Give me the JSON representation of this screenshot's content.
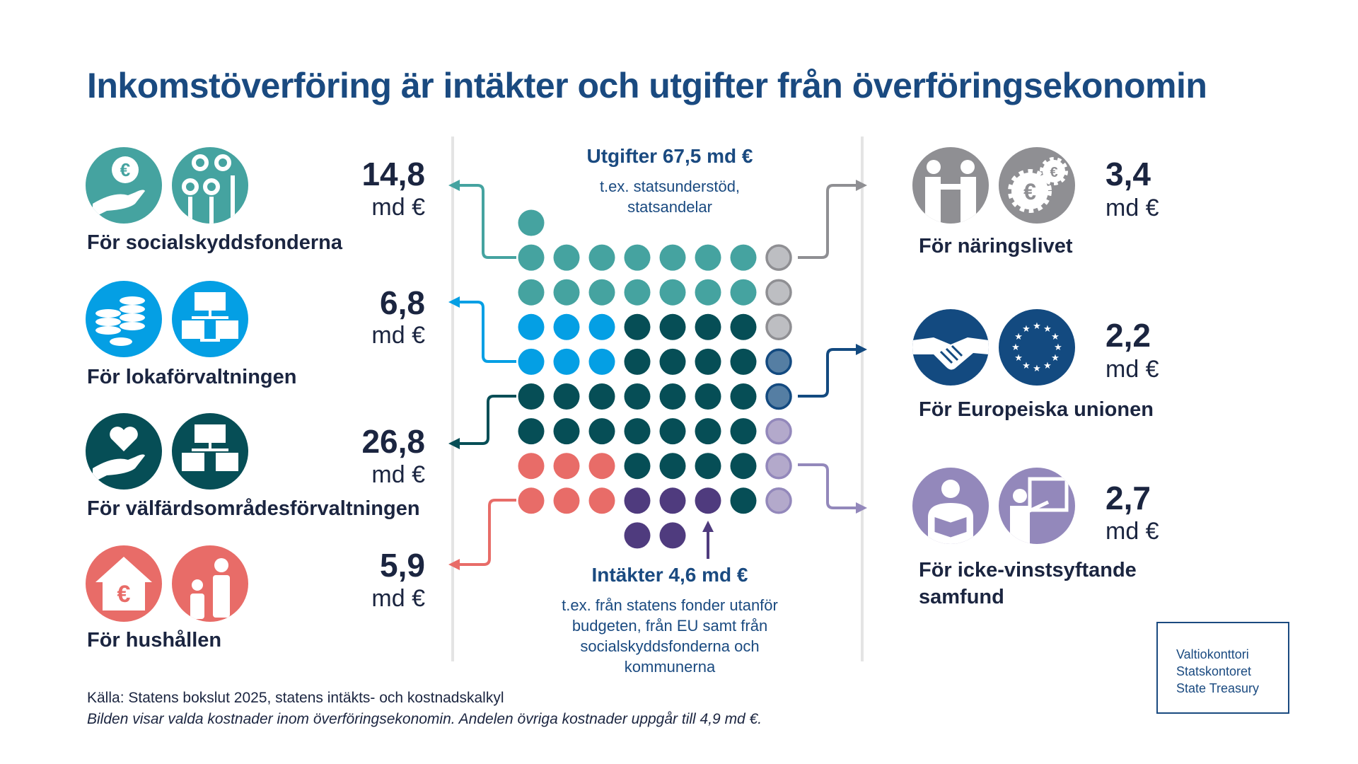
{
  "title": "Inkomstöverföring är intäkter och utgifter från överföringsekonomin",
  "colors": {
    "title": "#1a4a80",
    "social": "#45a3a0",
    "local": "#049fe4",
    "welfare": "#064e56",
    "households": "#e86c68",
    "eu": "#134a80",
    "business": "#8f8f93",
    "nonprofit": "#9388bb",
    "income": "#4f3b7e"
  },
  "left": [
    {
      "label": "För socialskyddsfonderna",
      "value": "14,8",
      "unit": "md €",
      "icons": [
        "euro-coin-hand-icon",
        "family-icon"
      ]
    },
    {
      "label": "För lokaförvaltningen",
      "value": "6,8",
      "unit": "md €",
      "icons": [
        "coins-icon",
        "org-chart-icon"
      ]
    },
    {
      "label": "För välfärdsområdesförvaltningen",
      "value": "26,8",
      "unit": "md €",
      "icons": [
        "heart-hand-icon",
        "org-chart-icon"
      ]
    },
    {
      "label": "För hushållen",
      "value": "5,9",
      "unit": "md €",
      "icons": [
        "euro-house-icon",
        "parent-child-icon"
      ]
    }
  ],
  "right": [
    {
      "label": "För näringslivet",
      "value": "3,4",
      "unit": "md €",
      "icons": [
        "business-handshake-icon",
        "euro-gears-icon"
      ]
    },
    {
      "label": "För Europeiska unionen",
      "value": "2,2",
      "unit": "md €",
      "icons": [
        "handshake-icon",
        "eu-flag-icon"
      ]
    },
    {
      "label": "För icke-vinstsyftande samfund",
      "value": "2,7",
      "unit": "md €",
      "icons": [
        "reader-icon",
        "teacher-icon"
      ]
    }
  ],
  "expenses": {
    "heading": "Utgifter 67,5 md €",
    "sub1": "t.ex. statsunderstöd,",
    "sub2": "statsandelar"
  },
  "income": {
    "heading": "Intäkter 4,6 md €",
    "sub1": "t.ex. från statens fonder utanför",
    "sub2": "budgeten, från EU samt från",
    "sub3": "socialskyddsfonderna och",
    "sub4": "kommunerna"
  },
  "source": "Källa: Statens bokslut 2025, statens intäkts- och kostnadskalkyl",
  "note": "Bilden visar valda kostnader inom överföringsekonomin. Andelen övriga kostnader uppgår till 4,9 md €.",
  "logo": {
    "line1": "Valtiokonttori",
    "line2": "Statskontoret",
    "line3": "State Treasury"
  },
  "dot_grid": [
    [
      "S",
      "",
      "",
      "",
      "",
      "",
      "",
      ""
    ],
    [
      "S",
      "S",
      "S",
      "S",
      "S",
      "S",
      "S",
      "B"
    ],
    [
      "S",
      "S",
      "S",
      "S",
      "S",
      "S",
      "S",
      "B"
    ],
    [
      "L",
      "L",
      "L",
      "W",
      "W",
      "W",
      "W",
      "B"
    ],
    [
      "L",
      "L",
      "L",
      "W",
      "W",
      "W",
      "W",
      "E"
    ],
    [
      "W",
      "W",
      "W",
      "W",
      "W",
      "W",
      "W",
      "E"
    ],
    [
      "W",
      "W",
      "W",
      "W",
      "W",
      "W",
      "W",
      "N"
    ],
    [
      "H",
      "H",
      "H",
      "W",
      "W",
      "W",
      "W",
      "N"
    ],
    [
      "H",
      "H",
      "H",
      "I",
      "I",
      "I",
      "W",
      "N"
    ],
    [
      "",
      "",
      "",
      "I",
      "I",
      "",
      "",
      ""
    ]
  ]
}
